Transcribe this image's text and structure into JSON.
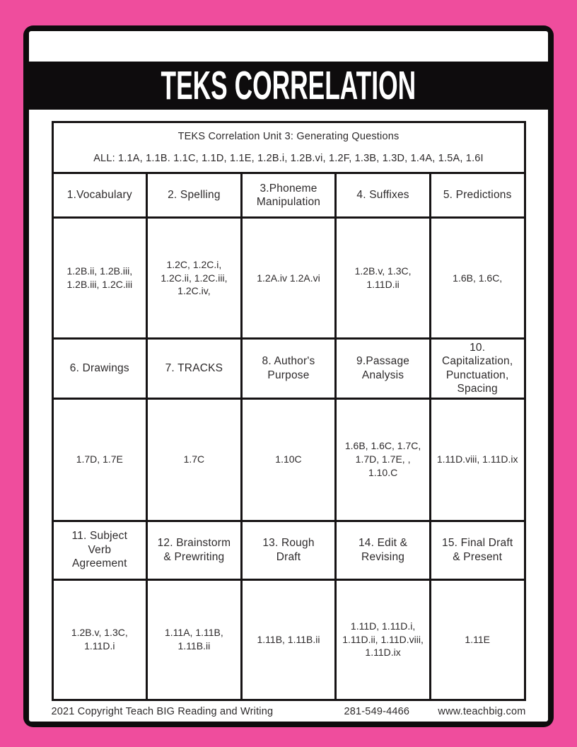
{
  "colors": {
    "pink_border": "#ef4d9d",
    "frame_black": "#0e0c0d",
    "page_white": "#ffffff",
    "text": "#2d2a2b"
  },
  "banner": {
    "title": "TEKS CORRELATION"
  },
  "table": {
    "title": "TEKS Correlation Unit 3: Generating Questions",
    "all_line": "ALL: 1.1A, 1.1B. 1.1C, 1.1D, 1.1E, 1.2B.i, 1.2B.vi, 1.2F, 1.3B, 1.3D, 1.4A, 1.5A, 1.6I",
    "sections": [
      {
        "headers": [
          "1.Vocabulary",
          "2. Spelling",
          "3.Phoneme Manipulation",
          "4. Suffixes",
          "5. Predictions"
        ],
        "values": [
          "1.2B.ii, 1.2B.iii, 1.2B.iii, 1.2C.iii",
          "1.2C, 1.2C.i, 1.2C.ii, 1.2C.iii, 1.2C.iv,",
          "1.2A.iv 1.2A.vi",
          "1.2B.v, 1.3C, 1.11D.ii",
          "1.6B, 1.6C,"
        ]
      },
      {
        "headers": [
          "6. Drawings",
          "7.  TRACKS",
          "8. Author's Purpose",
          "9.Passage Analysis",
          "10. Capitalization, Punctuation, Spacing"
        ],
        "values": [
          "1.7D, 1.7E",
          "1.7C",
          "1.10C",
          "1.6B, 1.6C, 1.7C, 1.7D, 1.7E, , 1.10.C",
          "1.11D.viii, 1.11D.ix"
        ]
      },
      {
        "headers": [
          "11. Subject Verb Agreement",
          "12. Brainstorm & Prewriting",
          "13. Rough Draft",
          "14. Edit & Revising",
          "15. Final Draft & Present"
        ],
        "values": [
          "1.2B.v, 1.3C, 1.11D.i",
          "1.11A, 1.11B, 1.11B.ii",
          "1.11B, 1.11B.ii",
          "1.11D, 1.11D.i, 1.11D.ii,  1.11D.viii, 1.11D.ix",
          "1.11E"
        ]
      }
    ]
  },
  "footer": {
    "copyright": "2021 Copyright Teach BIG Reading and Writing",
    "phone": "281-549-4466",
    "website": "www.teachbig.com"
  }
}
